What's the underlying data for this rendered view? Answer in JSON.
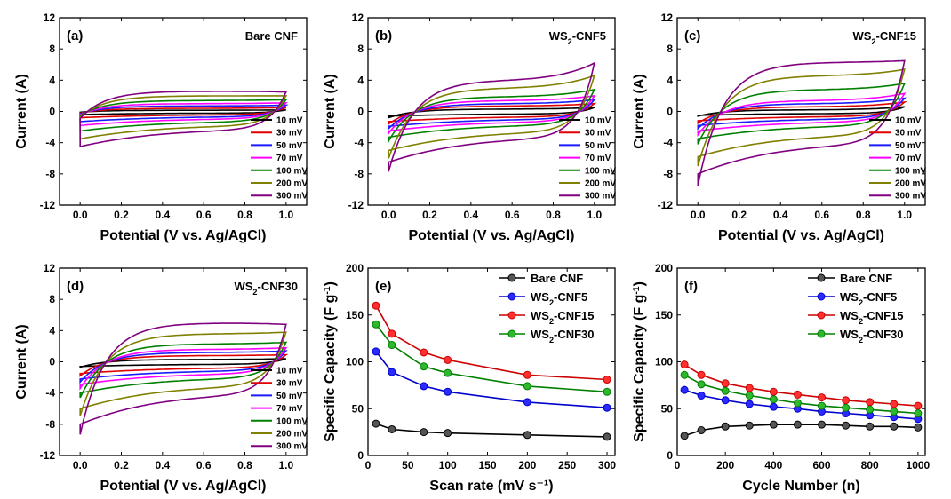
{
  "figure": {
    "xlabel_cv": "Potential (V vs. Ag/AgCl)",
    "ylabel_cv": "Current (A)",
    "ylabel_cap": "Specific Capacity (F g⁻¹)",
    "xlabel_e": "Scan rate (mV s⁻¹)",
    "xlabel_f": "Cycle Number (n)"
  },
  "chart_data": [
    {
      "panel": "(a)",
      "title": "Bare CNF",
      "type": "line",
      "xlim": [
        -0.1,
        1.1
      ],
      "ylim": [
        -12,
        12
      ],
      "xticks": [
        0.0,
        0.2,
        0.4,
        0.6,
        0.8,
        1.0
      ],
      "yticks": [
        -12,
        -8,
        -4,
        0,
        4,
        8,
        12
      ],
      "legend": [
        "10 mV",
        "30 mV",
        "50 mV",
        "70 mV",
        "100 mV",
        "200 mV",
        "300 mV"
      ],
      "colors": [
        "#000000",
        "#e00000",
        "#1a1aff",
        "#ff00ff",
        "#008000",
        "#808000",
        "#800080"
      ],
      "loops": [
        {
          "scan_rate_mV": 10,
          "peak_anodic_A": 0.15,
          "end_anodic_A": 0.2,
          "start_cathodic_A": -0.4,
          "end_cathodic_A": -0.1
        },
        {
          "scan_rate_mV": 30,
          "peak_anodic_A": 0.4,
          "end_anodic_A": 0.5,
          "start_cathodic_A": -0.8,
          "end_cathodic_A": -0.2
        },
        {
          "scan_rate_mV": 50,
          "peak_anodic_A": 0.7,
          "end_anodic_A": 0.8,
          "start_cathodic_A": -1.3,
          "end_cathodic_A": -0.3
        },
        {
          "scan_rate_mV": 70,
          "peak_anodic_A": 1.0,
          "end_anodic_A": 1.1,
          "start_cathodic_A": -1.8,
          "end_cathodic_A": -0.4
        },
        {
          "scan_rate_mV": 100,
          "peak_anodic_A": 1.4,
          "end_anodic_A": 1.5,
          "start_cathodic_A": -2.5,
          "end_cathodic_A": -0.5
        },
        {
          "scan_rate_mV": 200,
          "peak_anodic_A": 2.0,
          "end_anodic_A": 2.0,
          "start_cathodic_A": -3.5,
          "end_cathodic_A": -0.7
        },
        {
          "scan_rate_mV": 300,
          "peak_anodic_A": 2.6,
          "end_anodic_A": 2.5,
          "start_cathodic_A": -4.5,
          "end_cathodic_A": -0.9
        }
      ]
    },
    {
      "panel": "(b)",
      "title": "WS₂-CNF5",
      "type": "line",
      "xlim": [
        -0.1,
        1.1
      ],
      "ylim": [
        -12,
        12
      ],
      "xticks": [
        0.0,
        0.2,
        0.4,
        0.6,
        0.8,
        1.0
      ],
      "yticks": [
        -12,
        -8,
        -4,
        0,
        4,
        8,
        12
      ],
      "legend": [
        "10 mV",
        "30 mV",
        "50 mV",
        "70 mV",
        "100 mV",
        "200 mV",
        "300 mV"
      ],
      "colors": [
        "#000000",
        "#e00000",
        "#1a1aff",
        "#ff00ff",
        "#008000",
        "#808000",
        "#800080"
      ],
      "loops": [
        {
          "scan_rate_mV": 10,
          "peak_anodic_A": 0.3,
          "end_anodic_A": 0.5,
          "start_cathodic_A": -0.6,
          "end_cathodic_A": -0.8
        },
        {
          "scan_rate_mV": 30,
          "peak_anodic_A": 0.7,
          "end_anodic_A": 1.0,
          "start_cathodic_A": -1.3,
          "end_cathodic_A": -1.6
        },
        {
          "scan_rate_mV": 50,
          "peak_anodic_A": 1.0,
          "end_anodic_A": 1.5,
          "start_cathodic_A": -1.9,
          "end_cathodic_A": -2.2
        },
        {
          "scan_rate_mV": 70,
          "peak_anodic_A": 1.4,
          "end_anodic_A": 2.0,
          "start_cathodic_A": -2.5,
          "end_cathodic_A": -2.8
        },
        {
          "scan_rate_mV": 100,
          "peak_anodic_A": 1.9,
          "end_anodic_A": 2.8,
          "start_cathodic_A": -3.3,
          "end_cathodic_A": -3.8
        },
        {
          "scan_rate_mV": 200,
          "peak_anodic_A": 3.0,
          "end_anodic_A": 4.6,
          "start_cathodic_A": -5.0,
          "end_cathodic_A": -6.0
        },
        {
          "scan_rate_mV": 300,
          "peak_anodic_A": 4.0,
          "end_anodic_A": 6.2,
          "start_cathodic_A": -6.5,
          "end_cathodic_A": -7.7
        }
      ]
    },
    {
      "panel": "(c)",
      "title": "WS₂-CNF15",
      "type": "line",
      "xlim": [
        -0.1,
        1.1
      ],
      "ylim": [
        -12,
        12
      ],
      "xticks": [
        0.0,
        0.2,
        0.4,
        0.6,
        0.8,
        1.0
      ],
      "yticks": [
        -12,
        -8,
        -4,
        0,
        4,
        8,
        12
      ],
      "legend": [
        "10 mV",
        "30 mV",
        "50 mV",
        "70 mV",
        "100 mV",
        "200 mV",
        "300 mV"
      ],
      "colors": [
        "#000000",
        "#e00000",
        "#1a1aff",
        "#ff00ff",
        "#008000",
        "#808000",
        "#800080"
      ],
      "loops": [
        {
          "scan_rate_mV": 10,
          "peak_anodic_A": 0.2,
          "end_anodic_A": 0.6,
          "start_cathodic_A": -0.5,
          "end_cathodic_A": -0.6
        },
        {
          "scan_rate_mV": 30,
          "peak_anodic_A": 0.6,
          "end_anodic_A": 1.2,
          "start_cathodic_A": -1.2,
          "end_cathodic_A": -1.5
        },
        {
          "scan_rate_mV": 50,
          "peak_anodic_A": 1.0,
          "end_anodic_A": 1.7,
          "start_cathodic_A": -1.8,
          "end_cathodic_A": -2.2
        },
        {
          "scan_rate_mV": 70,
          "peak_anodic_A": 1.4,
          "end_anodic_A": 2.3,
          "start_cathodic_A": -2.5,
          "end_cathodic_A": -3.0
        },
        {
          "scan_rate_mV": 100,
          "peak_anodic_A": 2.8,
          "end_anodic_A": 3.6,
          "start_cathodic_A": -3.5,
          "end_cathodic_A": -4.2
        },
        {
          "scan_rate_mV": 200,
          "peak_anodic_A": 4.6,
          "end_anodic_A": 5.4,
          "start_cathodic_A": -5.8,
          "end_cathodic_A": -7.0
        },
        {
          "scan_rate_mV": 300,
          "peak_anodic_A": 6.3,
          "end_anodic_A": 6.5,
          "start_cathodic_A": -8.0,
          "end_cathodic_A": -9.5
        }
      ]
    },
    {
      "panel": "(d)",
      "title": "WS₂-CNF30",
      "type": "line",
      "xlim": [
        -0.1,
        1.1
      ],
      "ylim": [
        -12,
        12
      ],
      "xticks": [
        0.0,
        0.2,
        0.4,
        0.6,
        0.8,
        1.0
      ],
      "yticks": [
        -12,
        -8,
        -4,
        0,
        4,
        8,
        12
      ],
      "legend": [
        "10 mV",
        "30 mV",
        "50 mV",
        "70 mV",
        "100 mV",
        "200 mV",
        "300 mV"
      ],
      "colors": [
        "#000000",
        "#e00000",
        "#1a1aff",
        "#ff00ff",
        "#008000",
        "#808000",
        "#800080"
      ],
      "loops": [
        {
          "scan_rate_mV": 10,
          "peak_anodic_A": 0.3,
          "end_anodic_A": 0.4,
          "start_cathodic_A": -0.6,
          "end_cathodic_A": -0.7
        },
        {
          "scan_rate_mV": 30,
          "peak_anodic_A": 0.8,
          "end_anodic_A": 0.9,
          "start_cathodic_A": -1.5,
          "end_cathodic_A": -1.8
        },
        {
          "scan_rate_mV": 50,
          "peak_anodic_A": 1.2,
          "end_anodic_A": 1.4,
          "start_cathodic_A": -2.2,
          "end_cathodic_A": -2.6
        },
        {
          "scan_rate_mV": 70,
          "peak_anodic_A": 1.6,
          "end_anodic_A": 1.8,
          "start_cathodic_A": -2.9,
          "end_cathodic_A": -3.4
        },
        {
          "scan_rate_mV": 100,
          "peak_anodic_A": 2.3,
          "end_anodic_A": 2.5,
          "start_cathodic_A": -4.0,
          "end_cathodic_A": -4.6
        },
        {
          "scan_rate_mV": 200,
          "peak_anodic_A": 3.6,
          "end_anodic_A": 3.8,
          "start_cathodic_A": -6.0,
          "end_cathodic_A": -6.9
        },
        {
          "scan_rate_mV": 300,
          "peak_anodic_A": 5.0,
          "end_anodic_A": 4.8,
          "start_cathodic_A": -8.0,
          "end_cathodic_A": -9.3
        }
      ]
    },
    {
      "panel": "(e)",
      "type": "line",
      "xlim": [
        0,
        310
      ],
      "ylim": [
        0,
        200
      ],
      "xticks": [
        0,
        50,
        100,
        150,
        200,
        250,
        300
      ],
      "yticks": [
        0,
        50,
        100,
        150,
        200
      ],
      "x": [
        10,
        30,
        70,
        100,
        200,
        300
      ],
      "series": [
        {
          "name": "Bare CNF",
          "color": "#000000",
          "fill": "#555555",
          "values": [
            34,
            28,
            25,
            24,
            22,
            20
          ]
        },
        {
          "name": "WS₂-CNF5",
          "color": "#0000cc",
          "fill": "#2b2bff",
          "values": [
            111,
            89,
            74,
            68,
            57,
            51
          ]
        },
        {
          "name": "WS₂-CNF15",
          "color": "#cc0000",
          "fill": "#ff3030",
          "values": [
            160,
            130,
            110,
            102,
            86,
            81
          ]
        },
        {
          "name": "WS₂-CNF30",
          "color": "#008000",
          "fill": "#2eb82e",
          "values": [
            140,
            118,
            95,
            88,
            74,
            68
          ]
        }
      ]
    },
    {
      "panel": "(f)",
      "type": "line",
      "xlim": [
        0,
        1030
      ],
      "ylim": [
        0,
        200
      ],
      "xticks": [
        0,
        200,
        400,
        600,
        800,
        1000
      ],
      "yticks": [
        0,
        50,
        100,
        150,
        200
      ],
      "x": [
        30,
        100,
        200,
        300,
        400,
        500,
        600,
        700,
        800,
        900,
        1000
      ],
      "series": [
        {
          "name": "Bare CNF",
          "color": "#000000",
          "fill": "#555555",
          "values": [
            21,
            27,
            31,
            32,
            33,
            33,
            33,
            32,
            31,
            31,
            30
          ]
        },
        {
          "name": "WS₂-CNF5",
          "color": "#0000cc",
          "fill": "#2b2bff",
          "values": [
            70,
            64,
            59,
            55,
            52,
            50,
            47,
            45,
            43,
            41,
            39
          ]
        },
        {
          "name": "WS₂-CNF15",
          "color": "#cc0000",
          "fill": "#ff3030",
          "values": [
            97,
            86,
            77,
            72,
            68,
            65,
            62,
            59,
            57,
            55,
            53
          ]
        },
        {
          "name": "WS₂-CNF30",
          "color": "#008000",
          "fill": "#2eb82e",
          "values": [
            86,
            76,
            69,
            64,
            60,
            56,
            53,
            51,
            49,
            47,
            45
          ]
        }
      ]
    }
  ]
}
